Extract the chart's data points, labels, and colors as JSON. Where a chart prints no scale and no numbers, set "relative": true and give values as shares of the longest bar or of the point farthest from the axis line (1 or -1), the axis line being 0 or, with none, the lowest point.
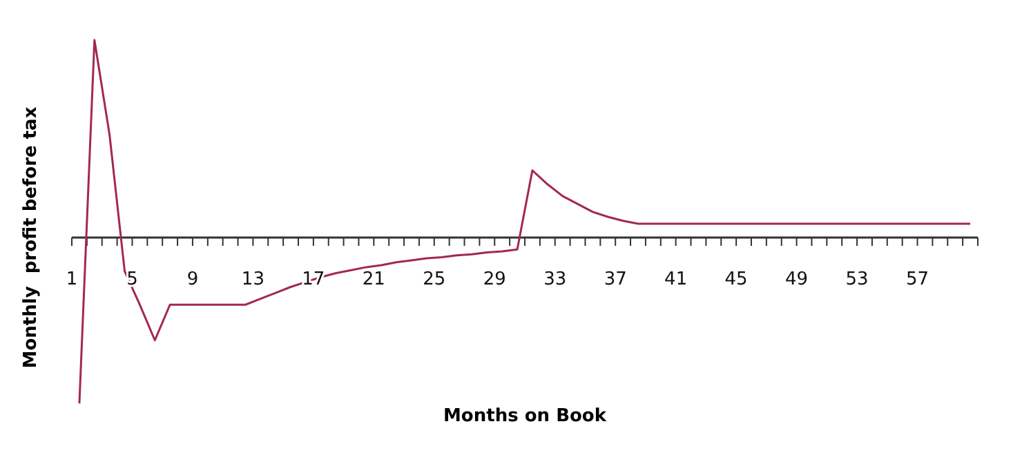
{
  "chart_data": {
    "type": "line",
    "relative": true,
    "xlabel": "Months on Book",
    "ylabel": "Monthly  profit before tax",
    "color": "#a3284f",
    "x": [
      1.5,
      2.5,
      3.5,
      4.5,
      5.5,
      6.5,
      7.5,
      8.5,
      9.5,
      10.5,
      11.5,
      12.5,
      13.5,
      14.5,
      15.5,
      16.5,
      17.5,
      18.5,
      19.5,
      20.5,
      21.5,
      22.5,
      23.5,
      24.5,
      25.5,
      26.5,
      27.5,
      28.5,
      29.5,
      30.5,
      31.5,
      32.5,
      33.5,
      34.5,
      35.5,
      36.5,
      37.5,
      38.5,
      39.5,
      40.5,
      41.5,
      42.5,
      43.5,
      44.5,
      45.5,
      46.5,
      47.5,
      48.5,
      49.5,
      50.5,
      51.5,
      52.5,
      53.5,
      54.5,
      55.5,
      56.5,
      57.5,
      58.5,
      59.5,
      60.5
    ],
    "values": [
      -0.84,
      1.0,
      0.52,
      -0.17,
      -0.34,
      -0.52,
      -0.34,
      -0.34,
      -0.34,
      -0.34,
      -0.34,
      -0.34,
      -0.31,
      -0.28,
      -0.25,
      -0.225,
      -0.2,
      -0.18,
      -0.165,
      -0.15,
      -0.14,
      -0.125,
      -0.115,
      -0.105,
      -0.1,
      -0.09,
      -0.085,
      -0.075,
      -0.07,
      -0.06,
      0.34,
      0.27,
      0.21,
      0.17,
      0.13,
      0.105,
      0.085,
      0.07,
      0.07,
      0.07,
      0.07,
      0.07,
      0.07,
      0.07,
      0.07,
      0.07,
      0.07,
      0.07,
      0.07,
      0.07,
      0.07,
      0.07,
      0.07,
      0.07,
      0.07,
      0.07,
      0.07,
      0.07,
      0.07,
      0.07
    ],
    "xlim": [
      1,
      61
    ],
    "xticks": [
      1,
      {
        "value": 2,
        "label": null
      },
      {
        "value": 3,
        "label": null
      },
      {
        "value": 4,
        "label": null
      },
      5,
      {
        "value": 6,
        "label": null
      },
      {
        "value": 7,
        "label": null
      },
      {
        "value": 8,
        "label": null
      },
      9,
      {
        "value": 10,
        "label": null
      },
      {
        "value": 11,
        "label": null
      },
      {
        "value": 12,
        "label": null
      },
      13,
      {
        "value": 14,
        "label": null
      },
      {
        "value": 15,
        "label": null
      },
      {
        "value": 16,
        "label": null
      },
      17,
      {
        "value": 18,
        "label": null
      },
      {
        "value": 19,
        "label": null
      },
      {
        "value": 20,
        "label": null
      },
      21,
      {
        "value": 22,
        "label": null
      },
      {
        "value": 23,
        "label": null
      },
      {
        "value": 24,
        "label": null
      },
      25,
      {
        "value": 26,
        "label": null
      },
      {
        "value": 27,
        "label": null
      },
      {
        "value": 28,
        "label": null
      },
      29,
      {
        "value": 30,
        "label": null
      },
      {
        "value": 31,
        "label": null
      },
      {
        "value": 32,
        "label": null
      },
      33,
      {
        "value": 34,
        "label": null
      },
      {
        "value": 35,
        "label": null
      },
      {
        "value": 36,
        "label": null
      },
      37,
      {
        "value": 38,
        "label": null
      },
      {
        "value": 39,
        "label": null
      },
      {
        "value": 40,
        "label": null
      },
      41,
      {
        "value": 42,
        "label": null
      },
      {
        "value": 43,
        "label": null
      },
      {
        "value": 44,
        "label": null
      },
      45,
      {
        "value": 46,
        "label": null
      },
      {
        "value": 47,
        "label": null
      },
      {
        "value": 48,
        "label": null
      },
      49,
      {
        "value": 50,
        "label": null
      },
      {
        "value": 51,
        "label": null
      },
      {
        "value": 52,
        "label": null
      },
      53,
      {
        "value": 54,
        "label": null
      },
      {
        "value": 55,
        "label": null
      },
      {
        "value": 56,
        "label": null
      },
      57,
      {
        "value": 58,
        "label": null
      },
      {
        "value": 59,
        "label": null
      },
      {
        "value": 60,
        "label": null
      },
      {
        "value": 61,
        "label": null
      }
    ],
    "grid": false,
    "marker": "none",
    "line_style": "solid"
  }
}
